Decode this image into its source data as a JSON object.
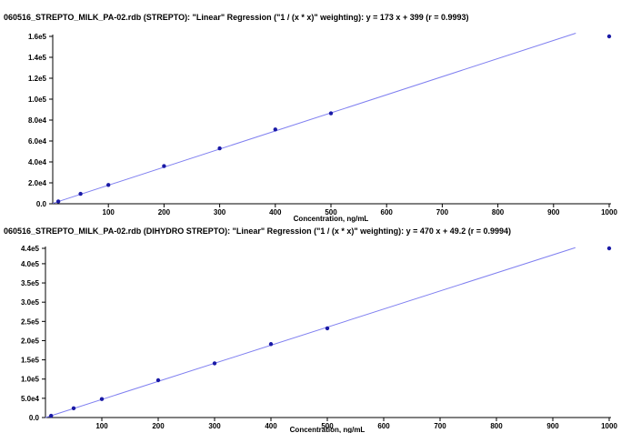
{
  "chart_data": [
    {
      "type": "scatter",
      "title": "060516_STREPTO_MILK_PA-02.rdb (STREPTO): \"Linear\" Regression (\"1  / (x * x)\" weighting): y = 173 x + 399 (r = 0.9993)",
      "xlabel": "Concentration, ng/mL",
      "ylabel": "",
      "xlim": [
        0,
        1000
      ],
      "ylim": [
        0,
        160000
      ],
      "x_ticks": [
        "100",
        "200",
        "300",
        "400",
        "500",
        "600",
        "700",
        "800",
        "900",
        "1000"
      ],
      "x_tick_values": [
        100,
        200,
        300,
        400,
        500,
        600,
        700,
        800,
        900,
        1000
      ],
      "y_ticks": [
        "0.0",
        "2.0e4",
        "4.0e4",
        "6.0e4",
        "8.0e4",
        "1.0e5",
        "1.2e5",
        "1.4e5",
        "1.6e5"
      ],
      "y_tick_values": [
        0,
        20000,
        40000,
        60000,
        80000,
        100000,
        120000,
        140000,
        160000
      ],
      "points": {
        "x": [
          10,
          50,
          100,
          200,
          300,
          400,
          500,
          1000
        ],
        "y": [
          2200,
          9500,
          18000,
          36000,
          53000,
          71000,
          86500,
          160000
        ]
      },
      "fit": {
        "slope": 173,
        "intercept": 399,
        "x_range": [
          0,
          940
        ]
      },
      "colors": {
        "point": "#1a1aa6",
        "line": "#7f7ff0",
        "axis": "#000000"
      }
    },
    {
      "type": "scatter",
      "title": "060516_STREPTO_MILK_PA-02.rdb (DIHYDRO STREPTO): \"Linear\" Regression (\"1  / (x * x)\" weighting): y = 470 x + 49.2 (r = 0.9994)",
      "xlabel": "Concentration, ng/mL",
      "ylabel": "",
      "xlim": [
        0,
        1000
      ],
      "ylim": [
        0,
        440000
      ],
      "x_ticks": [
        "100",
        "200",
        "300",
        "400",
        "500",
        "600",
        "700",
        "800",
        "900",
        "1000"
      ],
      "x_tick_values": [
        100,
        200,
        300,
        400,
        500,
        600,
        700,
        800,
        900,
        1000
      ],
      "y_ticks": [
        "0.0",
        "5.0e4",
        "1.0e5",
        "1.5e5",
        "2.0e5",
        "2.5e5",
        "3.0e5",
        "3.5e5",
        "4.0e5",
        "4.4e5"
      ],
      "y_tick_values": [
        0,
        50000,
        100000,
        150000,
        200000,
        250000,
        300000,
        350000,
        400000,
        440000
      ],
      "points": {
        "x": [
          10,
          50,
          100,
          200,
          300,
          400,
          500,
          1000
        ],
        "y": [
          4700,
          24000,
          48000,
          97000,
          141000,
          191000,
          232000,
          440000
        ]
      },
      "fit": {
        "slope": 470,
        "intercept": 49.2,
        "x_range": [
          0,
          940
        ]
      },
      "colors": {
        "point": "#1a1aa6",
        "line": "#7f7ff0",
        "axis": "#000000"
      }
    }
  ]
}
